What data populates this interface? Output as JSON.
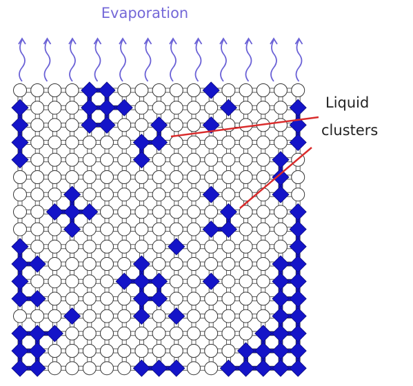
{
  "title": "Evaporation",
  "annotation": {
    "lines": [
      "Liquid",
      "clusters"
    ]
  }
}
